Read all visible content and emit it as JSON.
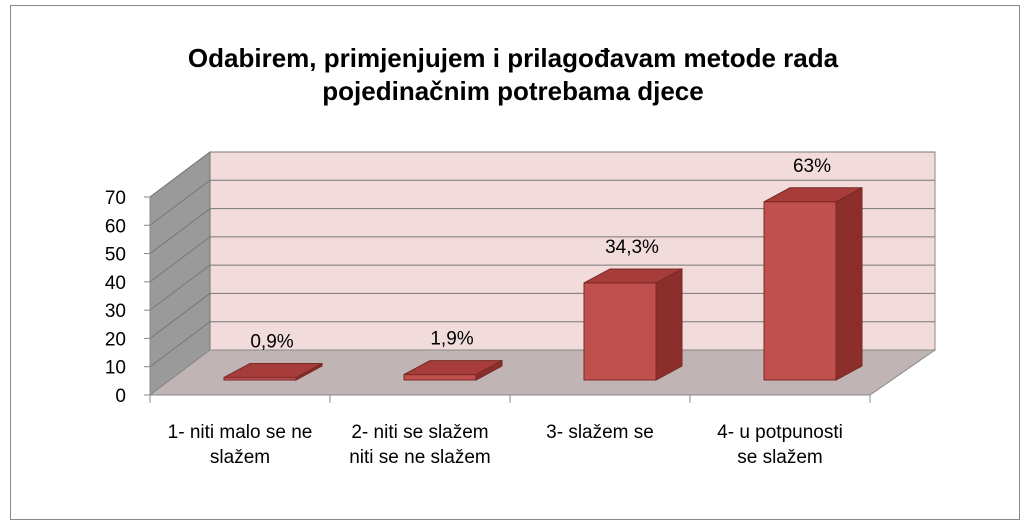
{
  "chart_data": {
    "type": "bar3d",
    "title": "Odabirem, primjenjujem i prilagođavam metode rada pojedinačnim potrebama djece",
    "categories": [
      "1- niti malo se ne slažem",
      "2- niti se slažem niti se ne slažem",
      "3- slažem se",
      "4- u potpunosti se slažem"
    ],
    "values": [
      0.9,
      1.9,
      34.3,
      63
    ],
    "value_labels": [
      "0,9%",
      "1,9%",
      "34,3%",
      "63%"
    ],
    "color": "#c0504d",
    "ylim": [
      0,
      70
    ],
    "yticks": [
      0,
      10,
      20,
      30,
      40,
      50,
      60,
      70
    ],
    "grid": true
  }
}
